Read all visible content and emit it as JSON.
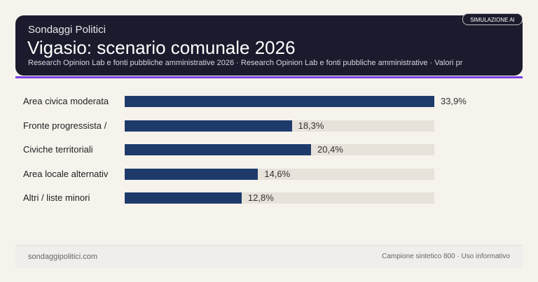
{
  "header": {
    "brand": "Sondaggi Politici",
    "title": "Vigasio: scenario comunale 2026",
    "subtitle": "Research Opinion Lab e fonti pubbliche amministrative 2026 · Research Opinion Lab e fonti pubbliche amministrative · Valori pr",
    "badge": "SIMULAZIONE AI"
  },
  "colors": {
    "bar": "#1e3a6b",
    "track": "#e7e2da",
    "accent": "#7b3fe4",
    "header_bg": "#1b1b2d"
  },
  "chart_data": {
    "type": "bar",
    "orientation": "horizontal",
    "categories": [
      "Area civica moderata",
      "Fronte progressista /",
      "Civiche territoriali",
      "Area locale alternativ",
      "Altri / liste minori"
    ],
    "values": [
      33.9,
      18.3,
      20.4,
      14.6,
      12.8
    ],
    "value_labels": [
      "33,9%",
      "18,3%",
      "20,4%",
      "14,6%",
      "12,8%"
    ],
    "unit": "%"
  },
  "footer": {
    "left": "sondaggipolitici.com",
    "right": "Campione sintetico 800 · Uso informativo"
  }
}
